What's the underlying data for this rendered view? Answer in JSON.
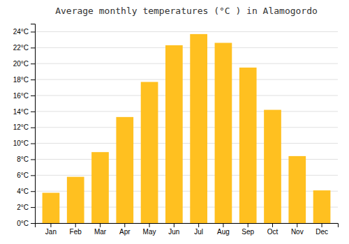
{
  "chart_data": {
    "type": "bar",
    "title": "Average monthly temperatures (°C ) in Alamogordo",
    "categories": [
      "Jan",
      "Feb",
      "Mar",
      "Apr",
      "May",
      "Jun",
      "Jul",
      "Aug",
      "Sep",
      "Oct",
      "Nov",
      "Dec"
    ],
    "values": [
      3.8,
      5.8,
      8.9,
      13.3,
      17.7,
      22.3,
      23.7,
      22.6,
      19.5,
      14.2,
      8.4,
      4.1
    ],
    "color": "#FFC020",
    "ylim": [
      0,
      25
    ],
    "yticks": [
      {
        "value": 0,
        "label": "0°C"
      },
      {
        "value": 2,
        "label": "2°C"
      },
      {
        "value": 4,
        "label": "4°C"
      },
      {
        "value": 6,
        "label": "6°C"
      },
      {
        "value": 8,
        "label": "8°C"
      },
      {
        "value": 10,
        "label": "10°C"
      },
      {
        "value": 12,
        "label": "12°C"
      },
      {
        "value": 14,
        "label": "14°C"
      },
      {
        "value": 16,
        "label": "16°C"
      },
      {
        "value": 18,
        "label": "18°C"
      },
      {
        "value": 20,
        "label": "20°C"
      },
      {
        "value": 22,
        "label": "22°C"
      },
      {
        "value": 24,
        "label": "24°C"
      }
    ],
    "grid": true
  }
}
